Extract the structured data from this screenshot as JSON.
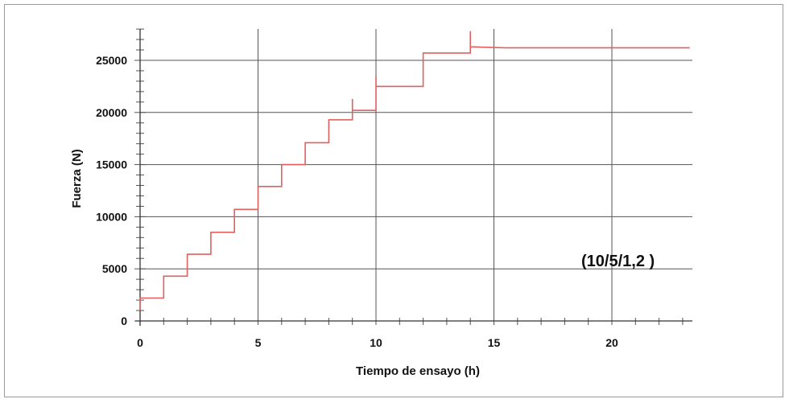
{
  "chart_data": {
    "type": "line",
    "title": "",
    "xlabel": "Tiempo de ensayo (h)",
    "ylabel": "Fuerza (N)",
    "annotation": "(10/5/1,2 )",
    "xlim": [
      0,
      23.5
    ],
    "ylim": [
      0,
      28000
    ],
    "x_ticks": [
      0,
      5,
      10,
      15,
      20
    ],
    "y_ticks": [
      0,
      5000,
      10000,
      15000,
      20000,
      25000
    ],
    "grid": true,
    "line_color": "#e06060",
    "series": [
      {
        "x": [
          0,
          0,
          1,
          1,
          2,
          2,
          3,
          3,
          4,
          4,
          5,
          5,
          6,
          6,
          7,
          7,
          8,
          8,
          9,
          9,
          9,
          9,
          10,
          10,
          10,
          10,
          12,
          12,
          14,
          14,
          14,
          14,
          15.5,
          20,
          23.3
        ],
        "y": [
          1000,
          2200,
          2200,
          4300,
          4300,
          6400,
          6400,
          8500,
          8500,
          10700,
          10700,
          12900,
          12900,
          15000,
          15000,
          17100,
          17100,
          19300,
          19300,
          21300,
          20300,
          20200,
          20200,
          23500,
          22600,
          22500,
          22500,
          25700,
          25700,
          27800,
          26400,
          26300,
          26200,
          26200,
          26200
        ]
      }
    ]
  }
}
